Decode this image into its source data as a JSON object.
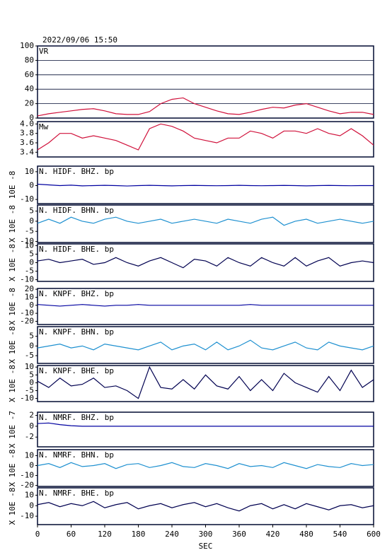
{
  "chart_data": [
    {
      "type": "line",
      "title": "2022/09/06  15:50",
      "label": "VR",
      "color": "#d0103a",
      "ylim": [
        0,
        100
      ],
      "yticks": [
        0,
        20,
        40,
        60,
        80,
        100
      ],
      "grid": true,
      "x": [
        0,
        20,
        40,
        60,
        80,
        100,
        120,
        140,
        160,
        180,
        200,
        220,
        240,
        260,
        280,
        300,
        320,
        340,
        360,
        380,
        400,
        420,
        440,
        460,
        480,
        500,
        520,
        540,
        560,
        580,
        600
      ],
      "values": [
        3,
        6,
        8,
        10,
        12,
        13,
        10,
        6,
        5,
        5,
        9,
        20,
        26,
        28,
        20,
        15,
        10,
        6,
        5,
        8,
        12,
        15,
        14,
        18,
        20,
        15,
        10,
        6,
        8,
        8,
        5
      ]
    },
    {
      "type": "line",
      "label": "Mw",
      "color": "#d0103a",
      "ylim": [
        3.3,
        4.05
      ],
      "yticks": [
        3.4,
        3.6,
        3.8,
        {
          "value": 4,
          "label": "4.0"
        }
      ],
      "grid": false,
      "x": [
        0,
        20,
        40,
        60,
        80,
        100,
        120,
        140,
        160,
        180,
        200,
        220,
        240,
        260,
        280,
        300,
        320,
        340,
        360,
        380,
        400,
        420,
        440,
        460,
        480,
        500,
        520,
        540,
        560,
        580,
        600
      ],
      "values": [
        3.45,
        3.6,
        3.8,
        3.8,
        3.7,
        3.75,
        3.7,
        3.65,
        3.55,
        3.45,
        3.9,
        4.0,
        3.95,
        3.85,
        3.7,
        3.65,
        3.6,
        3.7,
        3.7,
        3.85,
        3.8,
        3.7,
        3.85,
        3.85,
        3.8,
        3.9,
        3.8,
        3.75,
        3.9,
        3.75,
        3.55
      ]
    },
    {
      "type": "line",
      "label": "N. HIDF. BHZ. bp",
      "ylabel": "10E -8",
      "color": "#0000a0",
      "ylim": [
        -13,
        14
      ],
      "yticks": [
        -10,
        0,
        10
      ],
      "grid": false,
      "x": [
        0,
        20,
        40,
        60,
        80,
        100,
        120,
        140,
        160,
        180,
        200,
        220,
        240,
        260,
        280,
        300,
        320,
        340,
        360,
        380,
        400,
        420,
        440,
        460,
        480,
        500,
        520,
        540,
        560,
        580,
        600
      ],
      "values": [
        1,
        0.5,
        0,
        0.3,
        -0.2,
        0,
        0.2,
        0,
        -0.3,
        0,
        0.2,
        0,
        -0.2,
        0,
        0.1,
        0,
        -0.1,
        0,
        0.2,
        0,
        -0.1,
        0,
        0.1,
        0,
        -0.2,
        0,
        0.1,
        0,
        -0.1,
        0,
        0
      ]
    },
    {
      "type": "line",
      "label": "N. HIDF. BHN. bp",
      "ylabel": "X 10E -8",
      "color": "#1e90d0",
      "ylim": [
        -10.5,
        8
      ],
      "yticks": [
        -10,
        -5,
        0,
        5
      ],
      "grid": false,
      "x": [
        0,
        20,
        40,
        60,
        80,
        100,
        120,
        140,
        160,
        180,
        200,
        220,
        240,
        260,
        280,
        300,
        320,
        340,
        360,
        380,
        400,
        420,
        440,
        460,
        480,
        500,
        520,
        540,
        560,
        580,
        600
      ],
      "values": [
        -1,
        1,
        -1,
        2,
        0,
        -1,
        1,
        2,
        0,
        -1,
        0,
        1,
        -1,
        0,
        1,
        0,
        -1,
        1,
        0,
        -1,
        1,
        2,
        -2,
        0,
        1,
        -1,
        0,
        1,
        0,
        -1,
        0
      ]
    },
    {
      "type": "line",
      "label": "N. HIDF. BHE. bp",
      "ylabel": "X 10E -8",
      "color": "#000050",
      "ylim": [
        -11,
        11
      ],
      "yticks": [
        -10,
        -5,
        0,
        5,
        10
      ],
      "grid": false,
      "x": [
        0,
        20,
        40,
        60,
        80,
        100,
        120,
        140,
        160,
        180,
        200,
        220,
        240,
        260,
        280,
        300,
        320,
        340,
        360,
        380,
        400,
        420,
        440,
        460,
        480,
        500,
        520,
        540,
        560,
        580,
        600
      ],
      "values": [
        1,
        2,
        0,
        1,
        2,
        -1,
        0,
        3,
        0,
        -2,
        1,
        3,
        0,
        -3,
        2,
        1,
        -2,
        3,
        0,
        -2,
        3,
        0,
        -2,
        3,
        -2,
        1,
        3,
        -2,
        0,
        1,
        0
      ]
    },
    {
      "type": "line",
      "label": "N. KNPF. BHZ. bp",
      "ylabel": "X 10E -8",
      "color": "#0000a0",
      "ylim": [
        -24,
        21
      ],
      "yticks": [
        -20,
        -10,
        0,
        10,
        20
      ],
      "grid": false,
      "x": [
        0,
        20,
        40,
        60,
        80,
        100,
        120,
        140,
        160,
        180,
        200,
        220,
        240,
        260,
        280,
        300,
        320,
        340,
        360,
        380,
        400,
        420,
        440,
        460,
        480,
        500,
        520,
        540,
        560,
        580,
        600
      ],
      "values": [
        1,
        0,
        -1,
        0,
        1,
        0,
        -1,
        0,
        0,
        1,
        0,
        0,
        0,
        0,
        0,
        0,
        0,
        0,
        0,
        1,
        0,
        0,
        0,
        0,
        0,
        0,
        0,
        0,
        0,
        0,
        0
      ]
    },
    {
      "type": "line",
      "label": "N. KNPF. BHN. bp",
      "ylabel": "X 10E -8",
      "color": "#1e90d0",
      "ylim": [
        -9,
        10
      ],
      "yticks": [
        -5,
        0,
        5
      ],
      "grid": false,
      "x": [
        0,
        20,
        40,
        60,
        80,
        100,
        120,
        140,
        160,
        180,
        200,
        220,
        240,
        260,
        280,
        300,
        320,
        340,
        360,
        380,
        400,
        420,
        440,
        460,
        480,
        500,
        520,
        540,
        560,
        580,
        600
      ],
      "values": [
        -1,
        0,
        1,
        -1,
        0,
        -2,
        1,
        0,
        -1,
        -2,
        0,
        2,
        -2,
        0,
        1,
        -2,
        2,
        -2,
        0,
        3,
        -1,
        -2,
        0,
        2,
        -1,
        -2,
        2,
        0,
        -1,
        -2,
        0
      ]
    },
    {
      "type": "line",
      "label": "N. KNPF. BHE. bp",
      "ylabel": "X 10E -8",
      "color": "#000050",
      "ylim": [
        -12,
        11
      ],
      "yticks": [
        -10,
        -5,
        0,
        5,
        10
      ],
      "grid": false,
      "x": [
        0,
        20,
        40,
        60,
        80,
        100,
        120,
        140,
        160,
        180,
        200,
        220,
        240,
        260,
        280,
        300,
        320,
        340,
        360,
        380,
        400,
        420,
        440,
        460,
        480,
        500,
        520,
        540,
        560,
        580,
        600
      ],
      "values": [
        1,
        -3,
        3,
        -2,
        -1,
        3,
        -3,
        -2,
        -5,
        -10,
        10,
        -3,
        -4,
        2,
        -4,
        5,
        -2,
        -4,
        4,
        -5,
        2,
        -5,
        6,
        0,
        -3,
        -6,
        4,
        -5,
        8,
        -3,
        2
      ]
    },
    {
      "type": "line",
      "label": "N. NMRF. BHZ. bp",
      "ylabel": "X 10E -7",
      "color": "#0000a0",
      "ylim": [
        -3.8,
        2.6
      ],
      "yticks": [
        -2,
        0,
        2
      ],
      "grid": false,
      "x": [
        0,
        20,
        40,
        60,
        80,
        100,
        120,
        140,
        160,
        180,
        200,
        220,
        240,
        260,
        280,
        300,
        320,
        340,
        360,
        380,
        400,
        420,
        440,
        460,
        480,
        500,
        520,
        540,
        560,
        580,
        600
      ],
      "values": [
        0.5,
        0.6,
        0.3,
        0.1,
        0,
        0,
        0,
        0,
        0,
        0,
        0,
        0,
        0,
        0,
        0,
        0,
        0,
        0,
        0,
        0,
        0,
        0,
        0,
        0,
        0,
        0,
        0,
        0,
        0,
        0,
        0
      ]
    },
    {
      "type": "line",
      "label": "N. NMRF. BHN. bp",
      "ylabel": "X 10E -8",
      "color": "#1e90d0",
      "ylim": [
        -21,
        16
      ],
      "yticks": [
        -20,
        -10,
        0,
        10
      ],
      "grid": false,
      "x": [
        0,
        20,
        40,
        60,
        80,
        100,
        120,
        140,
        160,
        180,
        200,
        220,
        240,
        260,
        280,
        300,
        320,
        340,
        360,
        380,
        400,
        420,
        440,
        460,
        480,
        500,
        520,
        540,
        560,
        580,
        600
      ],
      "values": [
        0,
        2,
        -2,
        3,
        -1,
        0,
        2,
        -3,
        1,
        2,
        -2,
        0,
        3,
        -1,
        -2,
        2,
        0,
        -3,
        2,
        -1,
        0,
        -2,
        3,
        0,
        -3,
        1,
        -1,
        -2,
        2,
        0,
        1
      ]
    },
    {
      "type": "line",
      "label": "N. NMRF. BHE. bp",
      "ylabel": "X 10E -8",
      "color": "#000050",
      "ylim": [
        -18,
        17
      ],
      "yticks": [
        -10,
        0,
        10
      ],
      "grid": false,
      "xlabel": "SEC",
      "xlim": [
        0,
        600
      ],
      "xticks": [
        0,
        60,
        120,
        180,
        240,
        300,
        360,
        420,
        480,
        540,
        600
      ],
      "x": [
        0,
        20,
        40,
        60,
        80,
        100,
        120,
        140,
        160,
        180,
        200,
        220,
        240,
        260,
        280,
        300,
        320,
        340,
        360,
        380,
        400,
        420,
        440,
        460,
        480,
        500,
        520,
        540,
        560,
        580,
        600
      ],
      "values": [
        1,
        3,
        -1,
        2,
        0,
        4,
        -2,
        1,
        3,
        -3,
        0,
        2,
        -2,
        1,
        3,
        -1,
        2,
        -2,
        -5,
        0,
        2,
        -3,
        1,
        -3,
        2,
        -1,
        -4,
        0,
        1,
        -2,
        0
      ]
    }
  ]
}
